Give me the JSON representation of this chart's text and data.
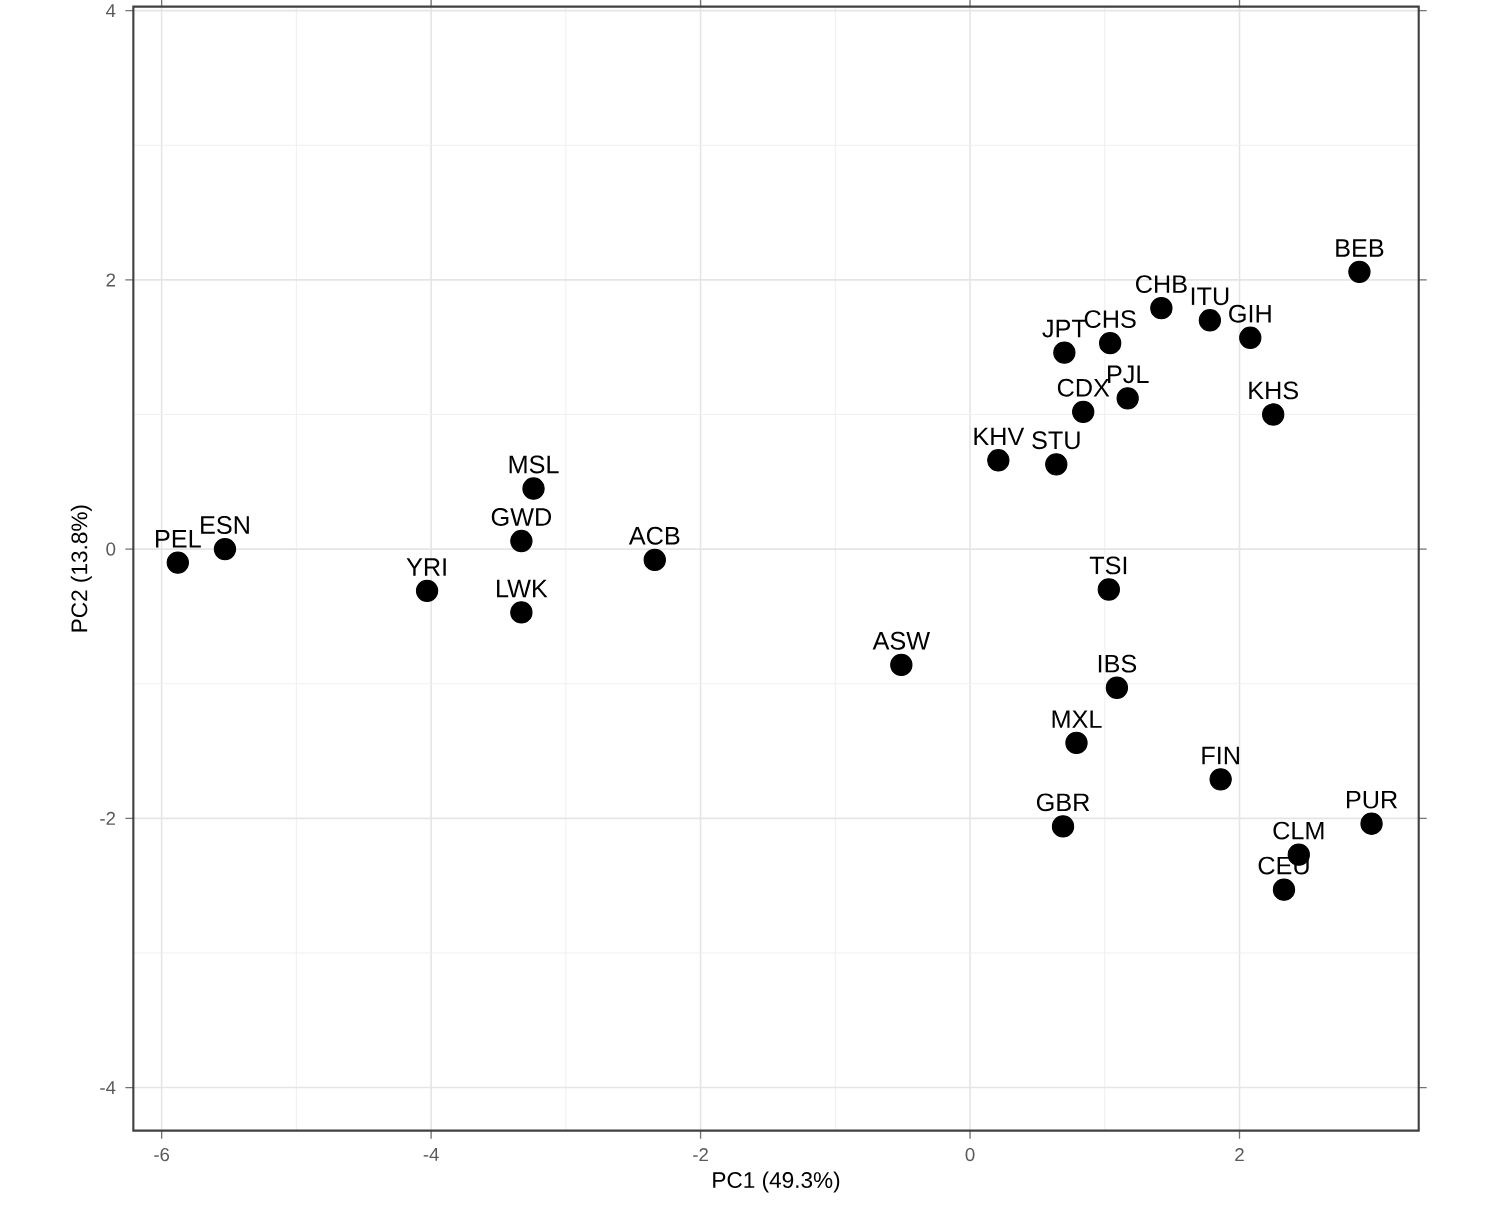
{
  "chart_data": {
    "type": "scatter",
    "xlabel": "PC1 (49.3%)",
    "ylabel": "PC2 (13.8%)",
    "xlim": [
      -6.21,
      3.33
    ],
    "ylim": [
      -4.32,
      4.03
    ],
    "xticks": [
      -6,
      -4,
      -2,
      0,
      2
    ],
    "yticks": [
      -4,
      -2,
      0,
      2,
      4
    ],
    "grid": true,
    "marker": "circle",
    "series": [
      {
        "color": "#000000",
        "x": [
          -5.88,
          -5.53,
          -4.03,
          -3.24,
          -3.33,
          -3.33,
          -2.34,
          -0.51,
          2.89,
          1.42,
          1.78,
          2.08,
          0.7,
          1.04,
          0.84,
          1.17,
          2.25,
          0.21,
          0.64,
          1.03,
          1.09,
          0.79,
          1.86,
          0.69,
          2.98,
          2.44,
          2.33
        ],
        "values": [
          -0.1,
          0.0,
          -0.31,
          0.45,
          0.06,
          -0.47,
          -0.08,
          -0.86,
          2.06,
          1.79,
          1.7,
          1.57,
          1.46,
          1.53,
          1.02,
          1.12,
          1.0,
          0.66,
          0.63,
          -0.3,
          -1.03,
          -1.44,
          -1.71,
          -2.06,
          -2.04,
          -2.27,
          -2.53
        ]
      }
    ],
    "annotations": [
      {
        "text": "PEL",
        "x": -5.88,
        "y": -0.1
      },
      {
        "text": "ESN",
        "x": -5.53,
        "y": 0.0
      },
      {
        "text": "YRI",
        "x": -4.03,
        "y": -0.31
      },
      {
        "text": "MSL",
        "x": -3.24,
        "y": 0.45
      },
      {
        "text": "GWD",
        "x": -3.33,
        "y": 0.06
      },
      {
        "text": "LWK",
        "x": -3.33,
        "y": -0.47
      },
      {
        "text": "ACB",
        "x": -2.34,
        "y": -0.08
      },
      {
        "text": "ASW",
        "x": -0.51,
        "y": -0.86
      },
      {
        "text": "BEB",
        "x": 2.89,
        "y": 2.06
      },
      {
        "text": "CHB",
        "x": 1.42,
        "y": 1.79
      },
      {
        "text": "ITU",
        "x": 1.78,
        "y": 1.7
      },
      {
        "text": "GIH",
        "x": 2.08,
        "y": 1.57
      },
      {
        "text": "JPT",
        "x": 0.7,
        "y": 1.46
      },
      {
        "text": "CHS",
        "x": 1.04,
        "y": 1.53
      },
      {
        "text": "CDX",
        "x": 0.84,
        "y": 1.02
      },
      {
        "text": "PJL",
        "x": 1.17,
        "y": 1.12
      },
      {
        "text": "KHS",
        "x": 2.25,
        "y": 1.0
      },
      {
        "text": "KHV",
        "x": 0.21,
        "y": 0.66
      },
      {
        "text": "STU",
        "x": 0.64,
        "y": 0.63
      },
      {
        "text": "TSI",
        "x": 1.03,
        "y": -0.3
      },
      {
        "text": "IBS",
        "x": 1.09,
        "y": -1.03
      },
      {
        "text": "MXL",
        "x": 0.79,
        "y": -1.44
      },
      {
        "text": "FIN",
        "x": 1.86,
        "y": -1.71
      },
      {
        "text": "GBR",
        "x": 0.69,
        "y": -2.06
      },
      {
        "text": "PUR",
        "x": 2.98,
        "y": -2.04
      },
      {
        "text": "CLM",
        "x": 2.44,
        "y": -2.27
      },
      {
        "text": "CEU",
        "x": 2.33,
        "y": -2.53
      }
    ]
  }
}
